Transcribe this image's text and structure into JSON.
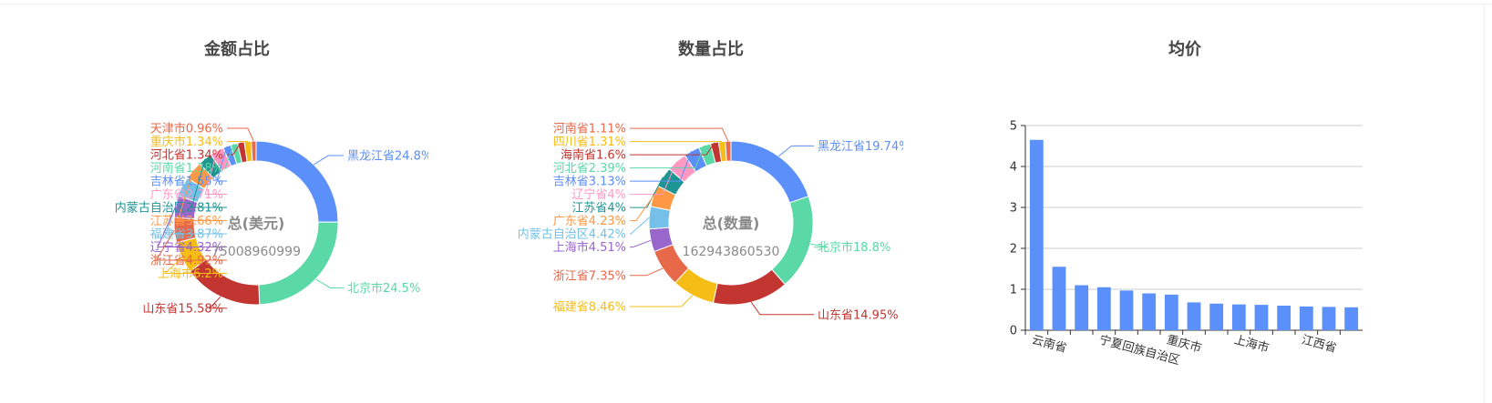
{
  "colors": [
    "#5b8ff9",
    "#5ad8a6",
    "#c23531",
    "#f6bd16",
    "#e8684a",
    "#9966cc",
    "#74c0e8",
    "#ff9845",
    "#1e9493",
    "#ff99c3",
    "#5b8ff9",
    "#5ad8a6",
    "#c23531",
    "#f6bd16",
    "#e8684a"
  ],
  "bar_color": "#5b8ff9",
  "chart_data": [
    {
      "type": "pie",
      "title": "金额占比",
      "center_title": "总(美元)",
      "center_value": "75008960999",
      "slices": [
        {
          "label": "黑龙江省24.8%",
          "value": 24.8,
          "color": "#5b8ff9"
        },
        {
          "label": "北京市24.5%",
          "value": 24.5,
          "color": "#5ad8a6"
        },
        {
          "label": "山东省15.58%",
          "value": 15.58,
          "color": "#c23531"
        },
        {
          "label": "上海市6.2%",
          "value": 6.2,
          "color": "#f6bd16"
        },
        {
          "label": "浙江省4.92%",
          "value": 4.92,
          "color": "#e8684a"
        },
        {
          "label": "辽宁省4.32%",
          "value": 4.32,
          "color": "#9966cc"
        },
        {
          "label": "福建省3.87%",
          "value": 3.87,
          "color": "#74c0e8"
        },
        {
          "label": "江苏省3.66%",
          "value": 3.66,
          "color": "#ff9845"
        },
        {
          "label": "内蒙古自治区2.81%",
          "value": 2.81,
          "color": "#1e9493"
        },
        {
          "label": "广东省2.71%",
          "value": 2.71,
          "color": "#ff99c3"
        },
        {
          "label": "吉林省1.55%",
          "value": 1.55,
          "color": "#5b8ff9"
        },
        {
          "label": "河南省1.38%",
          "value": 1.38,
          "color": "#5ad8a6"
        },
        {
          "label": "河北省1.34%",
          "value": 1.34,
          "color": "#c23531"
        },
        {
          "label": "重庆市1.34%",
          "value": 1.34,
          "color": "#f6bd16"
        },
        {
          "label": "天津市0.96%",
          "value": 0.96,
          "color": "#e8684a"
        }
      ]
    },
    {
      "type": "pie",
      "title": "数量占比",
      "center_title": "总(数量)",
      "center_value": "162943860530",
      "slices": [
        {
          "label": "黑龙江省19.74%",
          "value": 19.74,
          "color": "#5b8ff9"
        },
        {
          "label": "北京市18.8%",
          "value": 18.8,
          "color": "#5ad8a6"
        },
        {
          "label": "山东省14.95%",
          "value": 14.95,
          "color": "#c23531"
        },
        {
          "label": "福建省8.46%",
          "value": 8.46,
          "color": "#f6bd16"
        },
        {
          "label": "浙江省7.35%",
          "value": 7.35,
          "color": "#e8684a"
        },
        {
          "label": "上海市4.51%",
          "value": 4.51,
          "color": "#9966cc"
        },
        {
          "label": "内蒙古自治区4.42%",
          "value": 4.42,
          "color": "#74c0e8"
        },
        {
          "label": "广东省4.23%",
          "value": 4.23,
          "color": "#ff9845"
        },
        {
          "label": "江苏省4%",
          "value": 4.0,
          "color": "#1e9493"
        },
        {
          "label": "辽宁省4%",
          "value": 4.0,
          "color": "#ff99c3"
        },
        {
          "label": "吉林省3.13%",
          "value": 3.13,
          "color": "#5b8ff9"
        },
        {
          "label": "河北省2.39%",
          "value": 2.39,
          "color": "#5ad8a6"
        },
        {
          "label": "海南省1.6%",
          "value": 1.6,
          "color": "#c23531"
        },
        {
          "label": "四川省1.31%",
          "value": 1.31,
          "color": "#f6bd16"
        },
        {
          "label": "河南省1.11%",
          "value": 1.11,
          "color": "#e8684a"
        }
      ]
    },
    {
      "type": "bar",
      "title": "均价",
      "categories": [
        "云南省",
        "",
        "",
        "宁夏回族自治区",
        "",
        "",
        "重庆市",
        "",
        "",
        "上海市",
        "",
        "",
        "江西省",
        "",
        ""
      ],
      "values": [
        4.65,
        1.55,
        1.1,
        1.05,
        0.97,
        0.9,
        0.87,
        0.68,
        0.65,
        0.63,
        0.62,
        0.6,
        0.58,
        0.57,
        0.56
      ],
      "ylim": [
        0,
        5
      ],
      "yticks": [
        "0",
        "1",
        "2",
        "3",
        "4",
        "5"
      ],
      "grid": true
    }
  ]
}
